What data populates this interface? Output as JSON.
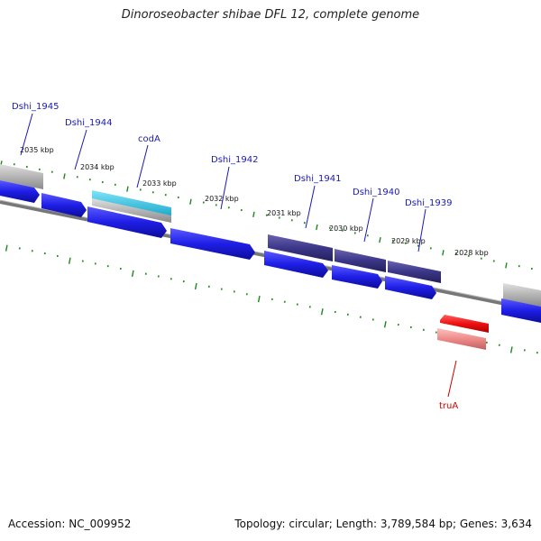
{
  "title": "Dinoroseobacter shibae DFL 12, complete genome",
  "footer": {
    "accession": "Accession: NC_009952",
    "summary": "Topology: circular; Length: 3,789,584 bp; Genes: 3,634"
  },
  "scale": {
    "labels": [
      "2035 kbp",
      "2034 kbp",
      "2033 kbp",
      "2032 kbp",
      "2031 kbp",
      "2030 kbp",
      "2029 kbp",
      "2028 kbp"
    ]
  },
  "gene_labels": [
    {
      "name": "Dshi_1945",
      "color": "#1a1ab5"
    },
    {
      "name": "Dshi_1944",
      "color": "#1a1ab5"
    },
    {
      "name": "codA",
      "color": "#1a1ab5"
    },
    {
      "name": "Dshi_1942",
      "color": "#1a1ab5"
    },
    {
      "name": "Dshi_1941",
      "color": "#1a1ab5"
    },
    {
      "name": "Dshi_1940",
      "color": "#1a1ab5"
    },
    {
      "name": "Dshi_1939",
      "color": "#1a1ab5"
    },
    {
      "name": "truA",
      "color": "#cc0000"
    }
  ],
  "colors": {
    "cds": "#1e1ee6",
    "cds_dark": "#2d2a7a",
    "trna_like": "#25c0e0",
    "gray_feature": "#b8b8b8",
    "red_feature": "#ee1111",
    "pink_feature": "#ee8a8a",
    "backbone": "#888888",
    "tick": "#1a8a1a"
  }
}
